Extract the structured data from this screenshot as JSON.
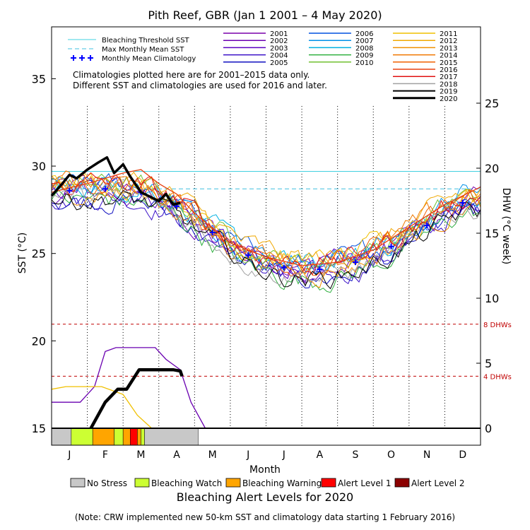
{
  "title": "Pith Reef, GBR      (Jan 1 2001 – 4 May 2020)",
  "chart_data": {
    "type": "line",
    "title": "Pith Reef, GBR      (Jan 1 2001 – 4 May 2020)",
    "xlabel": "Month",
    "ylabel_left": "SST (°C)",
    "ylabel_right": "DHW (°C week)",
    "xlim": [
      0,
      12
    ],
    "ylim_left": [
      15,
      38
    ],
    "ylim_right": [
      0,
      25
    ],
    "month_ticks": [
      "J",
      "F",
      "M",
      "A",
      "M",
      "J",
      "J",
      "A",
      "S",
      "O",
      "N",
      "D"
    ],
    "left_ticks": [
      15,
      20,
      25,
      30,
      35
    ],
    "right_ticks": [
      0,
      5,
      10,
      15,
      20,
      25
    ],
    "bleaching_threshold_sst": 29.7,
    "max_monthly_mean_sst": 28.7,
    "dhw_ref_lines": [
      {
        "value": 8,
        "label": "8 DHWs"
      },
      {
        "value": 4,
        "label": "4 DHWs"
      }
    ],
    "monthly_mean_climatology": [
      [
        0.5,
        28.6
      ],
      [
        1.5,
        28.7
      ],
      [
        2.5,
        28.5
      ],
      [
        3.5,
        27.7
      ],
      [
        4.5,
        26.2
      ],
      [
        5.5,
        24.9
      ],
      [
        6.5,
        24.2
      ],
      [
        7.5,
        24.1
      ],
      [
        8.5,
        24.5
      ],
      [
        9.5,
        25.4
      ],
      [
        10.5,
        26.6
      ],
      [
        11.5,
        27.9
      ]
    ],
    "sst_2020": [
      [
        0,
        28.3
      ],
      [
        0.3,
        29.0
      ],
      [
        0.5,
        29.5
      ],
      [
        0.7,
        29.3
      ],
      [
        1.0,
        29.8
      ],
      [
        1.3,
        30.2
      ],
      [
        1.55,
        30.5
      ],
      [
        1.75,
        29.6
      ],
      [
        2.0,
        30.1
      ],
      [
        2.2,
        29.4
      ],
      [
        2.5,
        28.5
      ],
      [
        2.8,
        28.2
      ],
      [
        3.0,
        28.0
      ],
      [
        3.2,
        28.4
      ],
      [
        3.4,
        27.8
      ],
      [
        3.6,
        27.9
      ]
    ],
    "dhw_2020": [
      [
        1.1,
        0
      ],
      [
        1.5,
        2.0
      ],
      [
        1.85,
        3.0
      ],
      [
        2.1,
        3.0
      ],
      [
        2.45,
        4.5
      ],
      [
        2.7,
        4.5
      ],
      [
        3.4,
        4.5
      ],
      [
        3.6,
        4.4
      ],
      [
        3.65,
        4.0
      ]
    ],
    "sst_2016": [
      [
        0,
        28.5
      ],
      [
        1,
        29.0
      ],
      [
        2,
        29.6
      ],
      [
        2.5,
        29.8
      ],
      [
        3,
        29.0
      ],
      [
        3.5,
        28.4
      ],
      [
        4,
        27.3
      ],
      [
        5,
        25.6
      ],
      [
        6,
        24.8
      ],
      [
        7,
        24.3
      ],
      [
        8,
        24.5
      ],
      [
        9,
        25.2
      ],
      [
        10,
        26.5
      ],
      [
        11,
        27.8
      ],
      [
        12,
        28.8
      ]
    ],
    "dhw_2002": [
      [
        0,
        2
      ],
      [
        0.8,
        2
      ],
      [
        1.2,
        3.2
      ],
      [
        1.5,
        5.9
      ],
      [
        1.8,
        6.2
      ],
      [
        2.9,
        6.2
      ],
      [
        3.2,
        5.3
      ],
      [
        3.6,
        4.5
      ],
      [
        3.9,
        2.0
      ],
      [
        4.3,
        0
      ]
    ],
    "dhw_2011": [
      [
        0,
        3
      ],
      [
        0.4,
        3.2
      ],
      [
        1.4,
        3.2
      ],
      [
        2.0,
        2.6
      ],
      [
        2.4,
        1.0
      ],
      [
        2.8,
        0
      ]
    ],
    "bleaching_status_2020": [
      {
        "start": 0,
        "end": 0.55,
        "level": "No Stress"
      },
      {
        "start": 0.55,
        "end": 1.15,
        "level": "Bleaching Watch"
      },
      {
        "start": 1.15,
        "end": 1.75,
        "level": "Bleaching Warning"
      },
      {
        "start": 1.75,
        "end": 2.0,
        "level": "Bleaching Watch"
      },
      {
        "start": 2.0,
        "end": 2.2,
        "level": "Bleaching Warning"
      },
      {
        "start": 2.2,
        "end": 2.4,
        "level": "Alert Level 1"
      },
      {
        "start": 2.4,
        "end": 2.5,
        "level": "Bleaching Warning"
      },
      {
        "start": 2.5,
        "end": 2.6,
        "level": "Bleaching Watch"
      },
      {
        "start": 2.6,
        "end": 4.1,
        "level": "No Stress"
      }
    ],
    "series": [
      {
        "name": "2001",
        "color": "#7a00aa"
      },
      {
        "name": "2002",
        "color": "#6a00b0"
      },
      {
        "name": "2003",
        "color": "#5a00c0"
      },
      {
        "name": "2004",
        "color": "#3a10c8"
      },
      {
        "name": "2005",
        "color": "#1010c0"
      },
      {
        "name": "2006",
        "color": "#0050e0"
      },
      {
        "name": "2007",
        "color": "#0090e8"
      },
      {
        "name": "2008",
        "color": "#00b0e0"
      },
      {
        "name": "2009",
        "color": "#30b040"
      },
      {
        "name": "2010",
        "color": "#70c030"
      },
      {
        "name": "2011",
        "color": "#f0c000"
      },
      {
        "name": "2012",
        "color": "#f0a800"
      },
      {
        "name": "2013",
        "color": "#f09000"
      },
      {
        "name": "2014",
        "color": "#f07800"
      },
      {
        "name": "2015",
        "color": "#f06000"
      },
      {
        "name": "2016",
        "color": "#e84010"
      },
      {
        "name": "2017",
        "color": "#e01010"
      },
      {
        "name": "2018",
        "color": "#a0a0a0"
      },
      {
        "name": "2019",
        "color": "#000000"
      },
      {
        "name": "2020",
        "color": "#000000"
      }
    ]
  },
  "legend": {
    "threshold_label": "Bleaching Threshold SST",
    "mmm_label": "Max Monthly Mean SST",
    "clim_label": "Monthly Mean Climatology",
    "note_line1": "Climatologies plotted here are for 2001–2015 data only.",
    "note_line2": "Different SST and climatologies are used for 2016 and later."
  },
  "alert_legend": {
    "title": "Bleaching Alert Levels for 2020",
    "items": [
      {
        "label": "No Stress",
        "color": "#c8c8c8"
      },
      {
        "label": "Bleaching Watch",
        "color": "#ccff33"
      },
      {
        "label": "Bleaching Warning",
        "color": "#ffa500"
      },
      {
        "label": "Alert Level 1",
        "color": "#ff0000"
      },
      {
        "label": "Alert Level 2",
        "color": "#8b0000"
      }
    ]
  },
  "footnote": "(Note: CRW implemented new 50-km SST and climatology data starting 1 February 2016)",
  "colors": {
    "threshold": "#40d0e0",
    "mmm": "#40c0e0",
    "climatology": "#0000ff",
    "dhw_ref": "#c00000"
  }
}
